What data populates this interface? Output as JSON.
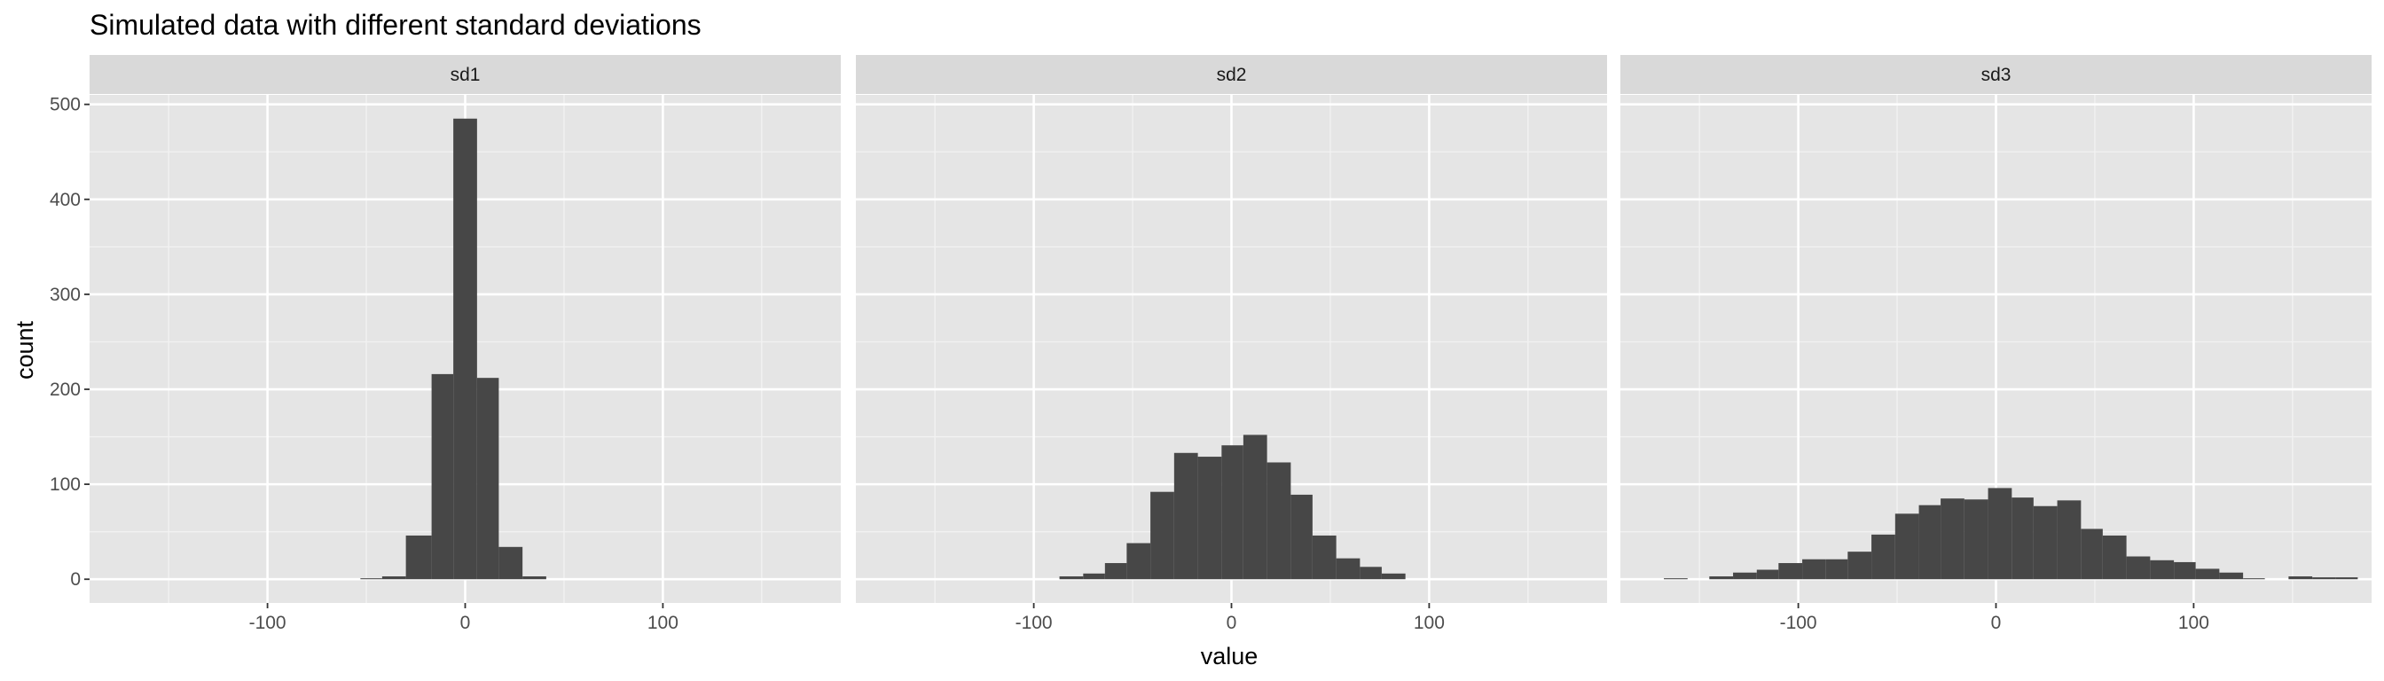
{
  "chart_data": {
    "type": "bar",
    "subtype": "histogram-faceted",
    "title": "Simulated data with different standard deviations",
    "xlabel": "value",
    "ylabel": "count",
    "xlim": [
      -190,
      190
    ],
    "ylim": [
      -25,
      510
    ],
    "x_ticks": [
      -100,
      0,
      100
    ],
    "x_tick_labels": [
      "-100",
      "0",
      "100"
    ],
    "y_ticks": [
      0,
      100,
      200,
      300,
      400,
      500
    ],
    "y_tick_labels": [
      "0",
      "100",
      "200",
      "300",
      "400",
      "500"
    ],
    "grid": true,
    "bar_color": "#474747",
    "panel_background": "#e5e5e5",
    "strip_background": "#d9d9d9",
    "facets": [
      {
        "name": "sd1",
        "bins": [
          {
            "x0": -53,
            "x1": -42,
            "count": 1
          },
          {
            "x0": -42,
            "x1": -30,
            "count": 3
          },
          {
            "x0": -30,
            "x1": -17,
            "count": 46
          },
          {
            "x0": -17,
            "x1": -6,
            "count": 216
          },
          {
            "x0": -6,
            "x1": 6,
            "count": 485
          },
          {
            "x0": 6,
            "x1": 17,
            "count": 212
          },
          {
            "x0": 17,
            "x1": 29,
            "count": 34
          },
          {
            "x0": 29,
            "x1": 41,
            "count": 3
          }
        ]
      },
      {
        "name": "sd2",
        "bins": [
          {
            "x0": -87,
            "x1": -75,
            "count": 3
          },
          {
            "x0": -75,
            "x1": -64,
            "count": 6
          },
          {
            "x0": -64,
            "x1": -53,
            "count": 17
          },
          {
            "x0": -53,
            "x1": -41,
            "count": 38
          },
          {
            "x0": -41,
            "x1": -29,
            "count": 92
          },
          {
            "x0": -29,
            "x1": -17,
            "count": 133
          },
          {
            "x0": -17,
            "x1": -5,
            "count": 129
          },
          {
            "x0": -5,
            "x1": 6,
            "count": 141
          },
          {
            "x0": 6,
            "x1": 18,
            "count": 152
          },
          {
            "x0": 18,
            "x1": 30,
            "count": 123
          },
          {
            "x0": 30,
            "x1": 41,
            "count": 89
          },
          {
            "x0": 41,
            "x1": 53,
            "count": 46
          },
          {
            "x0": 53,
            "x1": 65,
            "count": 22
          },
          {
            "x0": 65,
            "x1": 76,
            "count": 13
          },
          {
            "x0": 76,
            "x1": 88,
            "count": 6
          }
        ]
      },
      {
        "name": "sd3",
        "bins": [
          {
            "x0": -168,
            "x1": -156,
            "count": 1
          },
          {
            "x0": -145,
            "x1": -133,
            "count": 3
          },
          {
            "x0": -133,
            "x1": -121,
            "count": 7
          },
          {
            "x0": -121,
            "x1": -110,
            "count": 10
          },
          {
            "x0": -110,
            "x1": -98,
            "count": 17
          },
          {
            "x0": -98,
            "x1": -86,
            "count": 21
          },
          {
            "x0": -86,
            "x1": -75,
            "count": 21
          },
          {
            "x0": -75,
            "x1": -63,
            "count": 29
          },
          {
            "x0": -63,
            "x1": -51,
            "count": 47
          },
          {
            "x0": -51,
            "x1": -39,
            "count": 69
          },
          {
            "x0": -39,
            "x1": -28,
            "count": 78
          },
          {
            "x0": -28,
            "x1": -16,
            "count": 85
          },
          {
            "x0": -16,
            "x1": -4,
            "count": 84
          },
          {
            "x0": -4,
            "x1": 8,
            "count": 96
          },
          {
            "x0": 8,
            "x1": 19,
            "count": 86
          },
          {
            "x0": 19,
            "x1": 31,
            "count": 77
          },
          {
            "x0": 31,
            "x1": 43,
            "count": 83
          },
          {
            "x0": 43,
            "x1": 54,
            "count": 53
          },
          {
            "x0": 54,
            "x1": 66,
            "count": 46
          },
          {
            "x0": 66,
            "x1": 78,
            "count": 24
          },
          {
            "x0": 78,
            "x1": 90,
            "count": 20
          },
          {
            "x0": 90,
            "x1": 101,
            "count": 18
          },
          {
            "x0": 101,
            "x1": 113,
            "count": 11
          },
          {
            "x0": 113,
            "x1": 125,
            "count": 7
          },
          {
            "x0": 125,
            "x1": 136,
            "count": 1
          },
          {
            "x0": 148,
            "x1": 160,
            "count": 3
          },
          {
            "x0": 160,
            "x1": 172,
            "count": 2
          },
          {
            "x0": 172,
            "x1": 183,
            "count": 2
          }
        ]
      }
    ]
  }
}
